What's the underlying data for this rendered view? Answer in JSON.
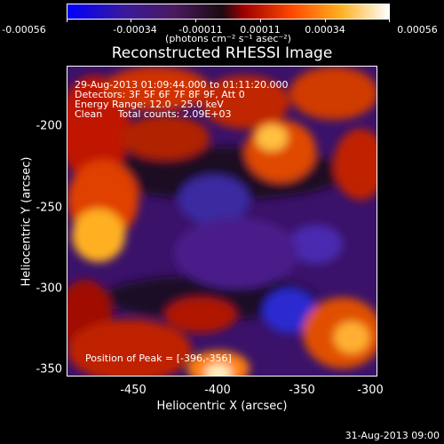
{
  "colorbar": {
    "tick_labels": [
      "-0.00056",
      "-0.00034",
      "-0.00011",
      "0.00011",
      "0.00034",
      "0.00056"
    ],
    "units_label": "(photons cm⁻² s⁻¹ asec⁻²)"
  },
  "title": "Reconstructed RHESSI Image",
  "overlay": {
    "line1": "29-Aug-2013 01:09:44.000 to 01:11:20.000",
    "line2": "Detectors: 3F 5F 6F 7F 8F 9F, Att 0",
    "line3": "Energy Range: 12.0 - 25.0 keV",
    "line4": "Clean     Total counts: 2.09E+03",
    "peak": "Position of Peak = [-396,-356]"
  },
  "axes": {
    "x_label": "Heliocentric X (arcsec)",
    "y_label": "Heliocentric Y (arcsec)",
    "x_ticks": [
      "-450",
      "-400",
      "-350",
      "-300"
    ],
    "y_ticks": [
      "-200",
      "-250",
      "-300",
      "-350"
    ],
    "x_range": [
      -485,
      -300
    ],
    "y_range": [
      -170,
      -355
    ]
  },
  "timestamp": "31-Aug-2013 09:00"
}
